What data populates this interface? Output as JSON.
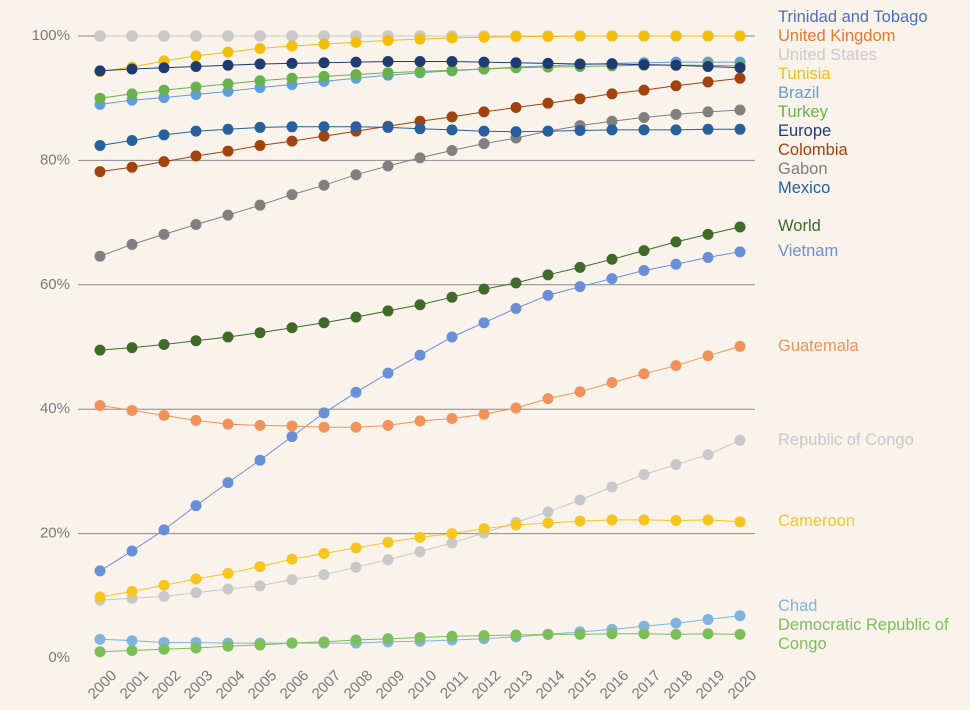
{
  "chart_data": {
    "type": "line",
    "x": [
      2000,
      2001,
      2002,
      2003,
      2004,
      2005,
      2006,
      2007,
      2008,
      2009,
      2010,
      2011,
      2012,
      2013,
      2014,
      2015,
      2016,
      2017,
      2018,
      2019,
      2020
    ],
    "xlim": [
      2000,
      2020
    ],
    "xticks": [
      2000,
      2001,
      2002,
      2003,
      2004,
      2005,
      2006,
      2007,
      2008,
      2009,
      2010,
      2011,
      2012,
      2013,
      2014,
      2015,
      2016,
      2017,
      2018,
      2019,
      2020
    ],
    "ylim": [
      0,
      100
    ],
    "yticks": [
      {
        "value": 0,
        "label": "0%"
      },
      {
        "value": 20,
        "label": "20%"
      },
      {
        "value": 40,
        "label": "40%"
      },
      {
        "value": 60,
        "label": "60%"
      },
      {
        "value": 80,
        "label": "80%"
      },
      {
        "value": 100,
        "label": "100%"
      }
    ],
    "grid": true,
    "series": [
      {
        "name": "Trinidad and Tobago",
        "color": "#4a6fc2",
        "values": [
          100,
          100,
          100,
          100,
          100,
          100,
          100,
          100,
          100,
          100,
          100,
          100,
          100,
          100,
          100,
          100,
          100,
          100,
          100,
          100,
          100
        ]
      },
      {
        "name": "United Kingdom",
        "color": "#e8772e",
        "values": [
          100,
          100,
          100,
          100,
          100,
          100,
          100,
          100,
          100,
          100,
          100,
          100,
          100,
          100,
          100,
          100,
          100,
          100,
          100,
          100,
          100
        ]
      },
      {
        "name": "United States",
        "color": "#c9c9c9",
        "values": [
          100,
          100,
          100,
          100,
          100,
          100,
          100,
          100,
          100,
          100,
          100,
          100,
          100,
          100,
          100,
          100,
          100,
          100,
          100,
          100,
          100
        ]
      },
      {
        "name": "Tunisia",
        "color": "#f5be0b",
        "values": [
          94.3,
          95,
          96,
          96.8,
          97.4,
          98,
          98.4,
          98.7,
          99,
          99.3,
          99.5,
          99.7,
          99.8,
          99.9,
          99.9,
          100,
          100,
          100,
          100,
          100,
          100
        ]
      },
      {
        "name": "Brazil",
        "color": "#5f9fdc",
        "values": [
          89,
          89.7,
          90.1,
          90.6,
          91.1,
          91.7,
          92.2,
          92.7,
          93.2,
          93.7,
          94.1,
          94.4,
          94.7,
          95,
          95.2,
          95.4,
          95.6,
          95.7,
          95.8,
          95.8,
          95.8
        ]
      },
      {
        "name": "Turkey",
        "color": "#6ab04c",
        "values": [
          90,
          90.7,
          91.3,
          91.8,
          92.3,
          92.8,
          93.2,
          93.5,
          93.8,
          94.1,
          94.3,
          94.5,
          94.7,
          94.9,
          95,
          95.1,
          95.2,
          95.3,
          95.3,
          95.3,
          95.2
        ]
      },
      {
        "name": "Europe",
        "color": "#1f3b70",
        "values": [
          94.4,
          94.7,
          94.9,
          95.1,
          95.3,
          95.5,
          95.6,
          95.7,
          95.8,
          95.9,
          95.9,
          95.9,
          95.8,
          95.7,
          95.6,
          95.5,
          95.5,
          95.4,
          95.3,
          95.1,
          94.9
        ]
      },
      {
        "name": "Colombia",
        "color": "#a0430e",
        "values": [
          78.2,
          78.9,
          79.8,
          80.7,
          81.5,
          82.4,
          83.1,
          83.9,
          84.7,
          85.5,
          86.3,
          87,
          87.8,
          88.5,
          89.2,
          89.9,
          90.7,
          91.3,
          92,
          92.6,
          93.2
        ]
      },
      {
        "name": "Gabon",
        "color": "#808080",
        "values": [
          64.6,
          66.5,
          68.1,
          69.7,
          71.2,
          72.8,
          74.5,
          76,
          77.7,
          79.1,
          80.4,
          81.6,
          82.7,
          83.6,
          84.7,
          85.6,
          86.3,
          86.9,
          87.4,
          87.8,
          88.1
        ]
      },
      {
        "name": "Mexico",
        "color": "#27609a",
        "values": [
          82.4,
          83.2,
          84.1,
          84.7,
          85,
          85.3,
          85.4,
          85.4,
          85.4,
          85.3,
          85.1,
          84.9,
          84.7,
          84.6,
          84.7,
          84.8,
          84.9,
          84.9,
          84.9,
          85,
          85
        ]
      },
      {
        "name": "World",
        "color": "#3f6a2a",
        "values": [
          49.5,
          49.9,
          50.4,
          51,
          51.6,
          52.3,
          53.1,
          53.9,
          54.8,
          55.8,
          56.8,
          58,
          59.3,
          60.3,
          61.6,
          62.8,
          64.1,
          65.5,
          66.9,
          68.1,
          69.3
        ]
      },
      {
        "name": "Vietnam",
        "color": "#6a8fd6",
        "values": [
          14,
          17.2,
          20.6,
          24.5,
          28.2,
          31.8,
          35.6,
          39.4,
          42.7,
          45.8,
          48.7,
          51.6,
          53.9,
          56.2,
          58.3,
          59.7,
          61,
          62.3,
          63.3,
          64.4,
          65.3
        ]
      },
      {
        "name": "Guatemala",
        "color": "#f0935a",
        "values": [
          40.6,
          39.8,
          39,
          38.2,
          37.6,
          37.4,
          37.3,
          37.1,
          37.1,
          37.4,
          38.1,
          38.5,
          39.2,
          40.2,
          41.7,
          42.8,
          44.3,
          45.7,
          47,
          48.6,
          50.1
        ]
      },
      {
        "name": "Republic of Congo",
        "color": "#c8c8c8",
        "values": [
          9.3,
          9.6,
          9.9,
          10.5,
          11.1,
          11.6,
          12.6,
          13.4,
          14.6,
          15.8,
          17.1,
          18.5,
          20.1,
          21.8,
          23.5,
          25.4,
          27.5,
          29.5,
          31.1,
          32.7,
          35
        ]
      },
      {
        "name": "Cameroon",
        "color": "#f7c520",
        "values": [
          9.8,
          10.7,
          11.7,
          12.7,
          13.6,
          14.7,
          15.9,
          16.8,
          17.7,
          18.6,
          19.4,
          20,
          20.8,
          21.4,
          21.7,
          22,
          22.2,
          22.2,
          22.1,
          22.2,
          21.9
        ]
      },
      {
        "name": "Chad",
        "color": "#80b4de",
        "values": [
          3,
          2.8,
          2.5,
          2.5,
          2.4,
          2.4,
          2.4,
          2.4,
          2.4,
          2.6,
          2.7,
          2.9,
          3.1,
          3.4,
          3.8,
          4.2,
          4.6,
          5.1,
          5.6,
          6.2,
          6.8
        ]
      },
      {
        "name": "Democratic Republic of Congo",
        "color": "#7cbf5a",
        "values": [
          1,
          1.2,
          1.4,
          1.6,
          1.9,
          2.1,
          2.4,
          2.6,
          2.9,
          3.1,
          3.3,
          3.5,
          3.6,
          3.7,
          3.8,
          3.8,
          3.9,
          3.9,
          3.8,
          3.9,
          3.8
        ]
      }
    ]
  }
}
